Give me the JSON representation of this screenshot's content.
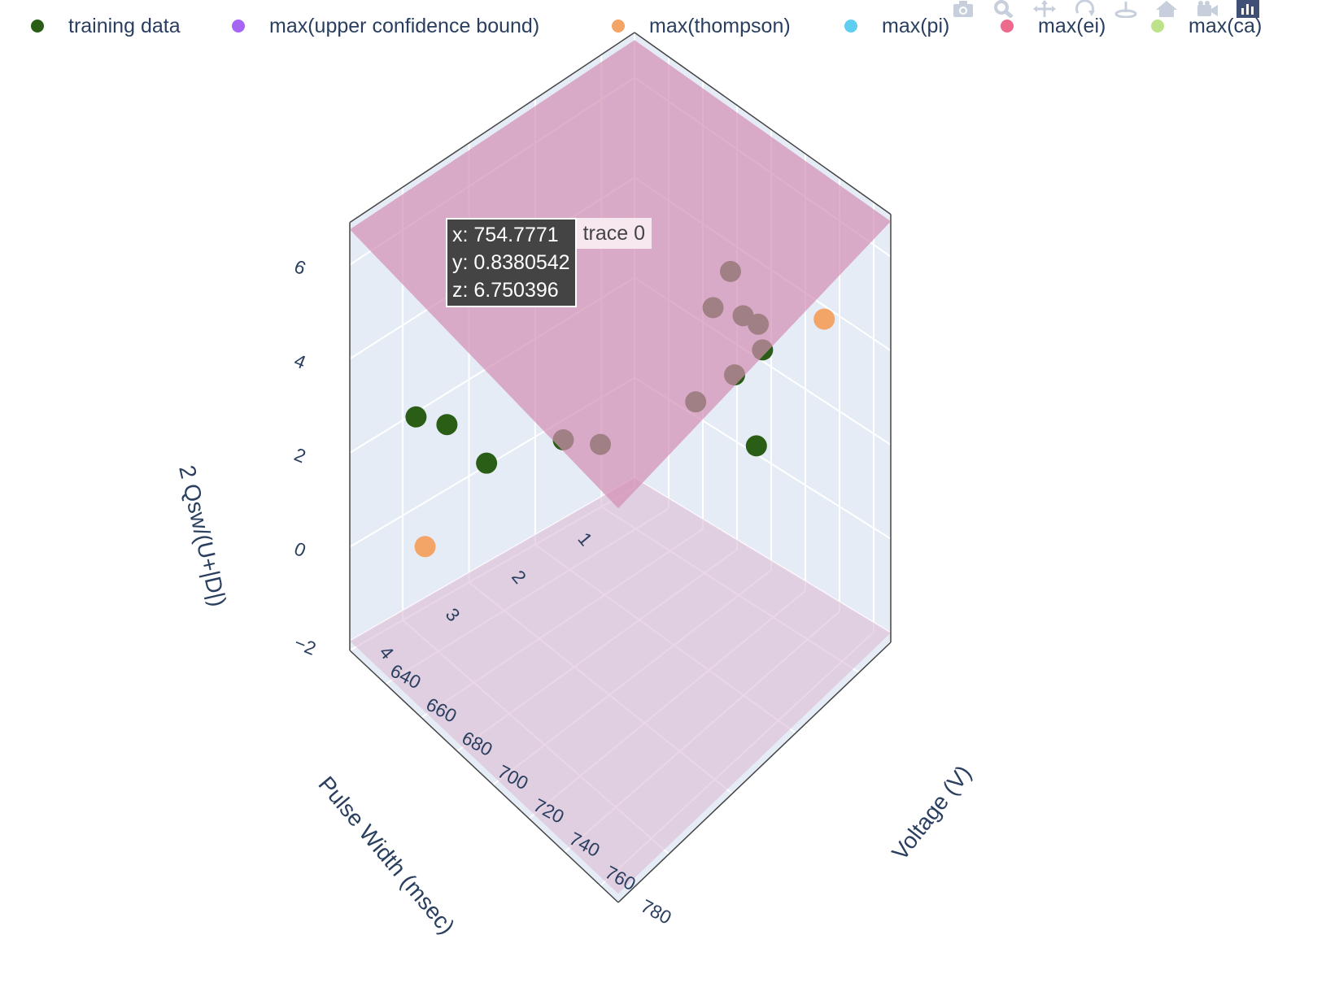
{
  "legend": [
    {
      "label": "training data",
      "color": "#2a5e17"
    },
    {
      "label": "max(upper confidence bound)",
      "color": "#a466f2"
    },
    {
      "label": "max(thompson)",
      "color": "#f3a467"
    },
    {
      "label": "max(pi)",
      "color": "#5fcdf2"
    },
    {
      "label": "max(ei)",
      "color": "#ec6a8c"
    },
    {
      "label": "max(ca)",
      "color": "#bde38a"
    }
  ],
  "modebar": [
    "camera-icon",
    "zoom-icon",
    "pan-icon",
    "orbit-rotate-icon",
    "turntable-icon",
    "home-icon",
    "camera-view-icon",
    "plotly-logo-icon"
  ],
  "tooltip": {
    "x_line": "x: 754.7771",
    "y_line": "y: 0.8380542",
    "z_line": "z: 6.750396",
    "trace_name": "trace 0"
  },
  "chart_data": {
    "type": "scatter3d",
    "axes": {
      "x": {
        "title": "Voltage (V)",
        "range": [
          640,
          790
        ],
        "ticks": [
          "640",
          "660",
          "680",
          "700",
          "720",
          "740",
          "760",
          "780"
        ]
      },
      "y": {
        "title": "Pulse Width (msec)",
        "range": [
          0.5,
          4.8
        ],
        "ticks": [
          "1",
          "2",
          "3",
          "4"
        ]
      },
      "z": {
        "title": "2 Qsw/(U+|D|)",
        "range": [
          -2.2,
          6.9
        ],
        "ticks": [
          "−2",
          "0",
          "2",
          "4",
          "6"
        ]
      }
    },
    "series": [
      {
        "name": "training data",
        "color": "#2a5e17",
        "points": [
          [
            700,
            0.6,
            3.6
          ],
          [
            705,
            1.0,
            3.4
          ],
          [
            720,
            0.7,
            3.1
          ],
          [
            710,
            1.4,
            2.0
          ],
          [
            730,
            1.2,
            4.1
          ],
          [
            745,
            1.3,
            3.9
          ],
          [
            740,
            1.6,
            3.6
          ],
          [
            760,
            1.8,
            2.9
          ],
          [
            700,
            2.6,
            2.1
          ],
          [
            690,
            2.9,
            2.2
          ],
          [
            665,
            3.4,
            1.4
          ],
          [
            650,
            3.6,
            1.9
          ],
          [
            640,
            3.8,
            1.9
          ]
        ]
      },
      {
        "name": "max(thompson)",
        "color": "#f3a467",
        "points": [
          [
            766,
            0.9,
            4.6
          ],
          [
            660,
            4.2,
            0.2
          ]
        ]
      }
    ],
    "surfaces": [
      {
        "name": "trace 0",
        "z": 6.75,
        "color": "#d38fb4",
        "opacity": 0.7
      },
      {
        "name": "lower plane",
        "z": -2.0,
        "color": "#dcbcd4",
        "opacity": 0.6
      }
    ],
    "grid": true,
    "legend_position": "top"
  }
}
